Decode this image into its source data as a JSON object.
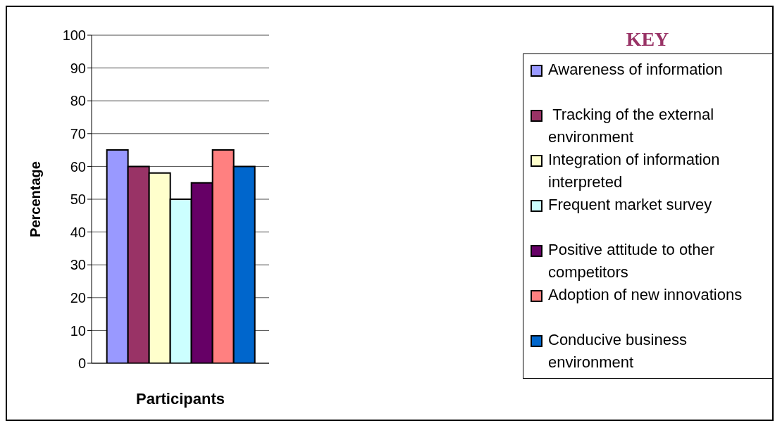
{
  "chart_data": {
    "type": "bar",
    "xlabel": "Participants",
    "ylabel": "Percentage",
    "legend_title": "KEY",
    "categories": [
      null
    ],
    "series": [
      {
        "name": "Awareness of information",
        "color": "#9999ff",
        "values": [
          65
        ]
      },
      {
        "name": " Tracking of the external environment",
        "color": "#993366",
        "values": [
          60
        ]
      },
      {
        "name": "Integration of information interpreted",
        "color": "#ffffcc",
        "values": [
          58
        ]
      },
      {
        "name": "Frequent market survey",
        "color": "#ccffff",
        "values": [
          50
        ]
      },
      {
        "name": "Positive attitude to other competitors",
        "color": "#660066",
        "values": [
          55
        ]
      },
      {
        "name": "Adoption of new innovations",
        "color": "#ff8080",
        "values": [
          65
        ]
      },
      {
        "name": "Conducive business environment",
        "color": "#0066cc",
        "values": [
          60
        ]
      }
    ],
    "ylim": [
      0,
      100
    ],
    "yticks": [
      0,
      10,
      20,
      30,
      40,
      50,
      60,
      70,
      80,
      90,
      100
    ],
    "grid": "y",
    "legend": "right"
  }
}
